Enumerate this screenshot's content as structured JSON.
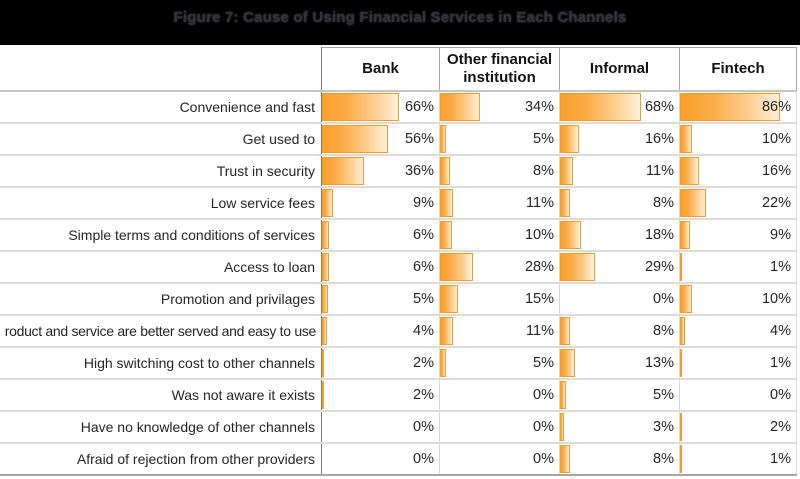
{
  "figure": {
    "title": "Figure 7: Cause of Using Financial Services in Each Channels"
  },
  "colors": {
    "titlebar_bg": "#000000",
    "bar_orange": "#f9a02c",
    "bar_border": "#f59e24",
    "grid_light": "#d9d9d9",
    "grid_dark": "#7f7f7f",
    "text": "#262626"
  },
  "chart_data": {
    "type": "bar",
    "orientation": "horizontal",
    "title": "Figure 7: Cause of Using Financial Services in Each Channels",
    "value_suffix": "%",
    "xlim": [
      0,
      100
    ],
    "bar_style": "gradient-data-bars",
    "categories": [
      "Convenience and fast",
      "Get used to",
      "Trust in security",
      "Low service fees",
      "Simple terms and conditions of services",
      "Access to loan",
      "Promotion and privilages",
      "roduct and service are better served and easy to use",
      "High switching cost to other channels",
      "Was not aware it exists",
      "Have no knowledge of other channels",
      "Afraid of rejection from other providers"
    ],
    "series": [
      {
        "name": "Bank",
        "values": [
          66,
          56,
          36,
          9,
          6,
          6,
          5,
          4,
          2,
          2,
          0,
          0
        ]
      },
      {
        "name": "Other financial institution",
        "values": [
          34,
          5,
          8,
          11,
          10,
          28,
          15,
          11,
          5,
          0,
          0,
          0
        ]
      },
      {
        "name": "Informal",
        "values": [
          68,
          16,
          11,
          8,
          18,
          29,
          0,
          8,
          13,
          5,
          3,
          8
        ]
      },
      {
        "name": "Fintech",
        "values": [
          86,
          10,
          16,
          22,
          9,
          1,
          10,
          4,
          1,
          0,
          2,
          1
        ]
      }
    ]
  }
}
